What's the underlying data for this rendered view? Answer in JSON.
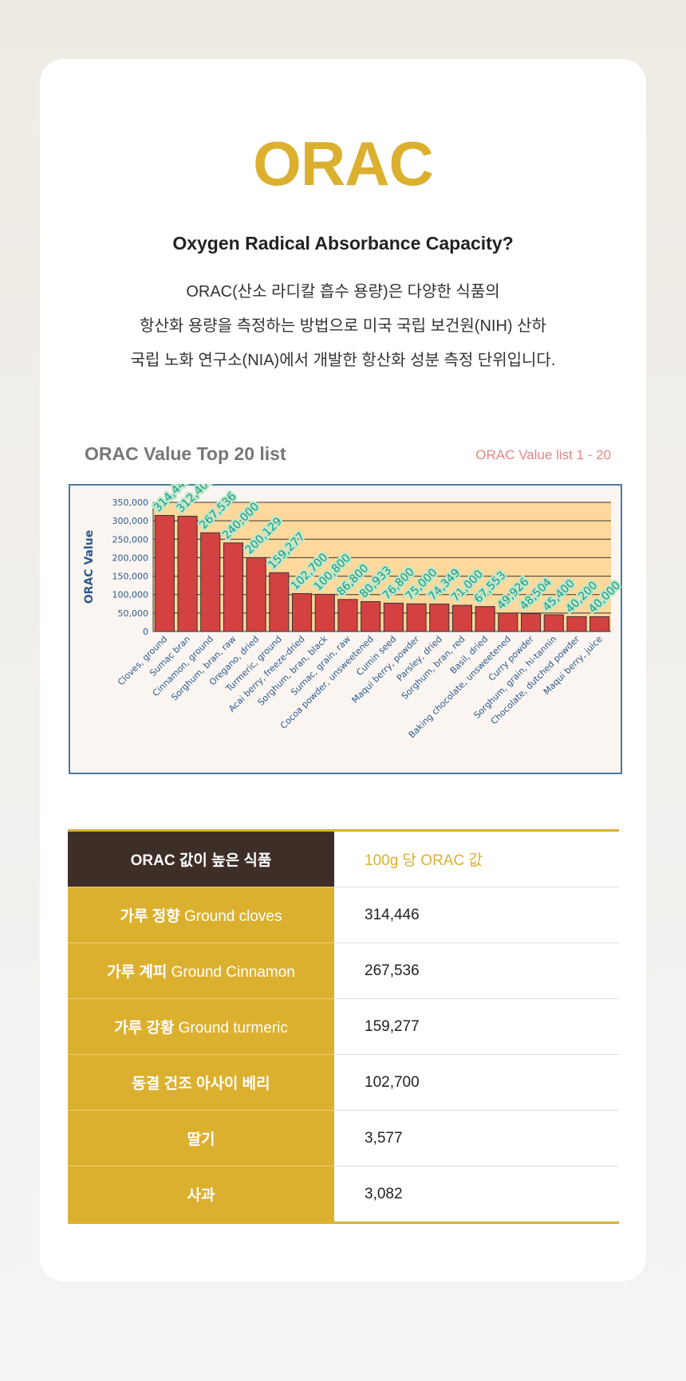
{
  "header": {
    "title": "ORAC",
    "subtitle": "Oxygen Radical Absorbance Capacity?",
    "description": [
      "ORAC(산소 라디칼 흡수 용량)은 다양한 식품의",
      "항산화 용량을 측정하는 방법으로 미국 국립 보건원(NIH) 산하",
      "국립 노화 연구소(NIA)에서 개발한 항산화 성분 측정 단위입니다."
    ]
  },
  "chart_data": {
    "type": "bar",
    "title": "ORAC Value Top 20 list",
    "subtitle": "ORAC Value list 1 - 20",
    "y_label": "ORAC Value",
    "categories": [
      "Cloves, ground",
      "Sumac bran",
      "Cinnamon, ground",
      "Sorghum, bran, raw",
      "Oregano, dried",
      "Turmeric, ground",
      "Acai berry, freeze-dried",
      "Sorghum, bran, black",
      "Sumac, grain, raw",
      "Cocoa powder, unsweetened",
      "Cumin seed",
      "Maqui berry, powder",
      "Parsley, dried",
      "Sorghum, bran, red",
      "Basil, dried",
      "Baking chocolate, unsweetened",
      "Curry powder",
      "Sorghum, grain, hi-tannin",
      "Chocolate, dutched powder",
      "Maqui berry, juice"
    ],
    "values": [
      314446,
      312400,
      267536,
      240000,
      200129,
      159277,
      102700,
      100800,
      86800,
      80933,
      76800,
      75000,
      74349,
      71000,
      67553,
      49926,
      48504,
      45400,
      40200,
      40000
    ],
    "value_labels": [
      "314,446",
      "312,400",
      "267,536",
      "240,000",
      "200,129",
      "159,277",
      "102,700",
      "100,800",
      "86,800",
      "80,933",
      "76,800",
      "75,000",
      "74,349",
      "71,000",
      "67,553",
      "49,926",
      "48,504",
      "45,400",
      "40,200",
      "40,000"
    ],
    "color": "#d34141",
    "ylim": [
      0,
      350000
    ],
    "yticks": [
      0,
      {
        "value": 50000,
        "label": "50,000"
      },
      {
        "value": 100000,
        "label": "100,000"
      },
      {
        "value": 150000,
        "label": "150,000"
      },
      {
        "value": 200000,
        "label": "200,000"
      },
      {
        "value": 250000,
        "label": "250,000"
      },
      {
        "value": 300000,
        "label": "300,000"
      },
      {
        "value": 350000,
        "label": "350,000"
      }
    ],
    "grid": true
  },
  "table": {
    "header": [
      "ORAC 값이 높은 식품",
      "100g 당 ORAC 값"
    ],
    "rows": [
      [
        {
          "ko": "가루 정향",
          "en": "Ground cloves"
        },
        "314,446"
      ],
      [
        {
          "ko": "가루 계피",
          "en": "Ground Cinnamon"
        },
        "267,536"
      ],
      [
        {
          "ko": "가루 강황",
          "en": "Ground turmeric"
        },
        "159,277"
      ],
      [
        {
          "ko": "동결 건조 아사이 베리"
        },
        "102,700"
      ],
      [
        {
          "ko": "딸기"
        },
        "3,577"
      ],
      [
        {
          "ko": "사과"
        },
        "3,082"
      ]
    ]
  }
}
